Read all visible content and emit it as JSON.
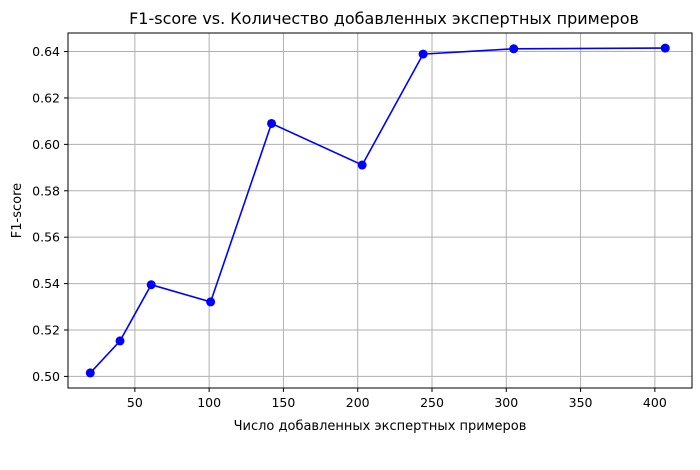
{
  "chart_data": {
    "type": "line",
    "title": "F1-score vs. Количество добавленных экспертных примеров",
    "xlabel": "Число добавленных экспертных примеров",
    "ylabel": "F1-score",
    "xlim": [
      5,
      425
    ],
    "ylim": [
      0.495,
      0.648
    ],
    "xticks": [
      50,
      100,
      150,
      200,
      250,
      300,
      350,
      400
    ],
    "xtick_labels": [
      "50",
      "100",
      "150",
      "200",
      "250",
      "300",
      "350",
      "400"
    ],
    "yticks": [
      0.5,
      0.52,
      0.54,
      0.56,
      0.58,
      0.6,
      0.62,
      0.64
    ],
    "ytick_labels": [
      "0.50",
      "0.52",
      "0.54",
      "0.56",
      "0.58",
      "0.60",
      "0.62",
      "0.64"
    ],
    "grid": true,
    "marker": "circle",
    "series": [
      {
        "color": "#0000ff",
        "x": [
          20,
          40,
          61,
          101,
          142,
          203,
          244,
          305,
          407
        ],
        "y": [
          0.5015,
          0.5153,
          0.5395,
          0.5321,
          0.609,
          0.5911,
          0.6389,
          0.6412,
          0.6415
        ]
      }
    ]
  }
}
